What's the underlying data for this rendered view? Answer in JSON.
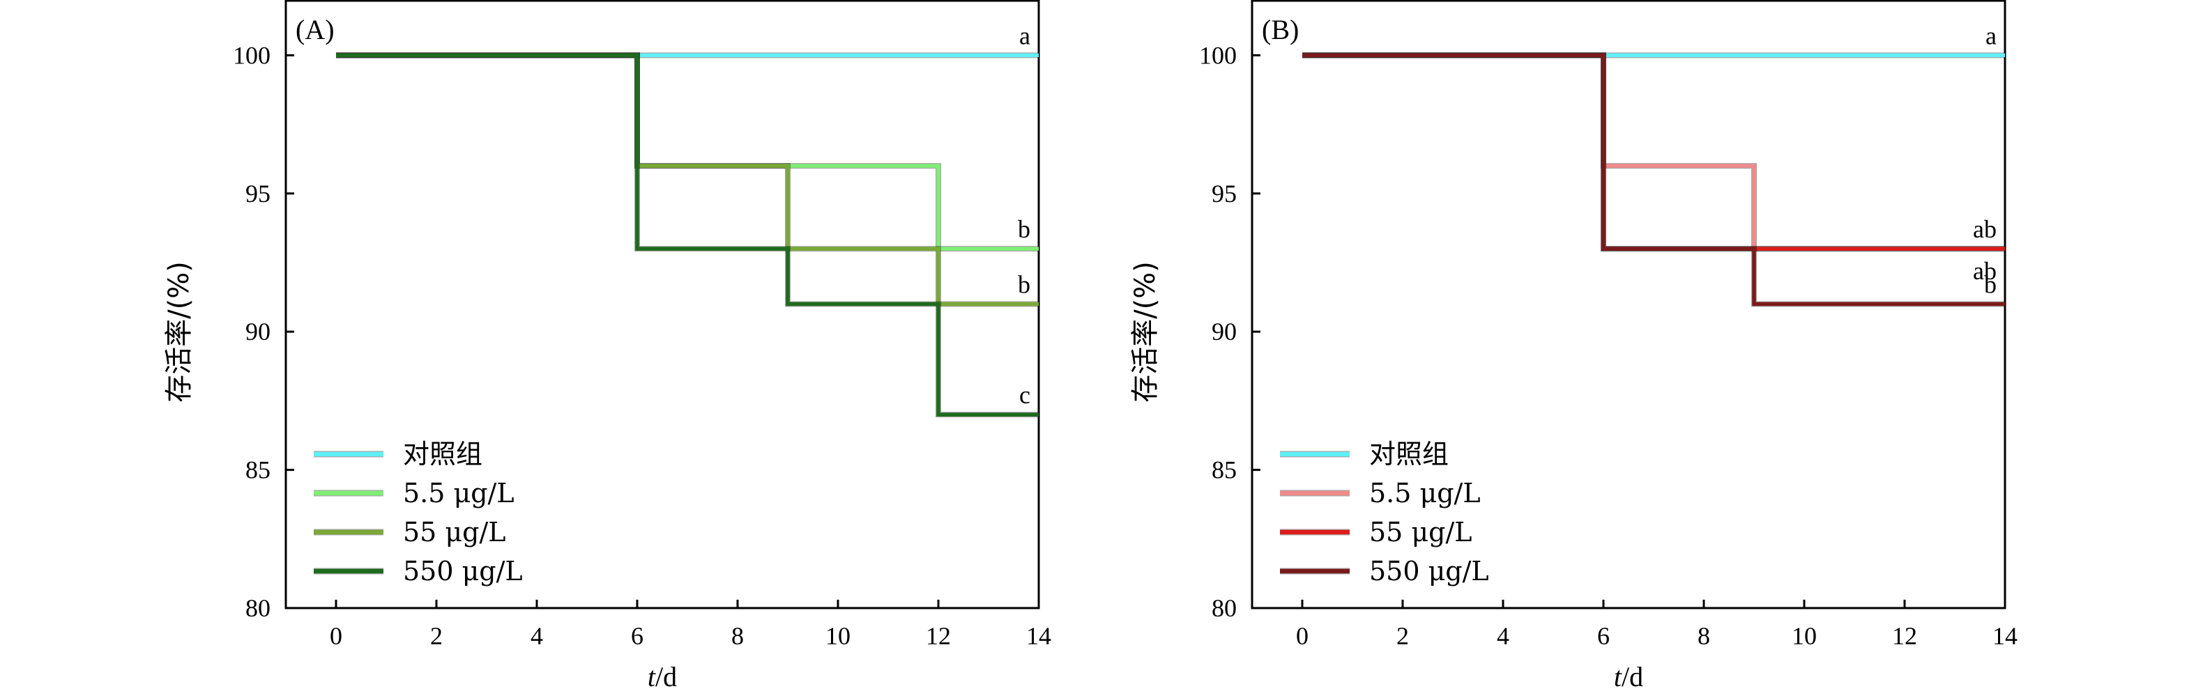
{
  "chart_data": [
    {
      "type": "line",
      "step": true,
      "panel_label": "(A)",
      "xlabel_italic": "t",
      "xlabel_rest": "/d",
      "ylabel": "存活率/(%)",
      "xlim": [
        -1,
        14
      ],
      "ylim": [
        80,
        102
      ],
      "xticks": [
        0,
        2,
        4,
        6,
        8,
        10,
        12,
        14
      ],
      "yticks": [
        80,
        85,
        90,
        95,
        100
      ],
      "legend_position": "bottom-left",
      "series": [
        {
          "name": "对照组",
          "color": "#5ff0f7",
          "x": [
            0,
            14
          ],
          "y": [
            100,
            100
          ],
          "annotation": "a"
        },
        {
          "name": "5.5 μg/L",
          "color": "#80ee74",
          "x": [
            0,
            6,
            12,
            14
          ],
          "y": [
            100,
            96,
            93,
            93
          ],
          "annotation": "b"
        },
        {
          "name": "55 μg/L",
          "color": "#7aa937",
          "x": [
            0,
            6,
            9,
            12,
            14
          ],
          "y": [
            100,
            96,
            93,
            91,
            91
          ],
          "annotation": "b"
        },
        {
          "name": "550 μg/L",
          "color": "#1d6b1d",
          "x": [
            0,
            6,
            9,
            12,
            14
          ],
          "y": [
            100,
            93,
            91,
            87,
            87
          ],
          "annotation": "c"
        }
      ]
    },
    {
      "type": "line",
      "step": true,
      "panel_label": "(B)",
      "xlabel_italic": "t",
      "xlabel_rest": "/d",
      "ylabel": "存活率/(%)",
      "xlim": [
        -1,
        14
      ],
      "ylim": [
        80,
        102
      ],
      "xticks": [
        0,
        2,
        4,
        6,
        8,
        10,
        12,
        14
      ],
      "yticks": [
        80,
        85,
        90,
        95,
        100
      ],
      "legend_position": "bottom-left",
      "series": [
        {
          "name": "对照组",
          "color": "#5ff0f7",
          "x": [
            0,
            14
          ],
          "y": [
            100,
            100
          ],
          "annotation": "a"
        },
        {
          "name": "5.5 μg/L",
          "color": "#f08a8a",
          "x": [
            0,
            6,
            9,
            14
          ],
          "y": [
            100,
            96,
            93,
            93
          ],
          "annotation": "ab"
        },
        {
          "name": "55 μg/L",
          "color": "#dd1c1c",
          "x": [
            0,
            6,
            14
          ],
          "y": [
            100,
            93,
            93
          ],
          "annotation": "ab"
        },
        {
          "name": "550 μg/L",
          "color": "#7a1a1a",
          "x": [
            0,
            6,
            9,
            14
          ],
          "y": [
            100,
            93,
            91,
            91
          ],
          "annotation": "b"
        }
      ]
    }
  ]
}
